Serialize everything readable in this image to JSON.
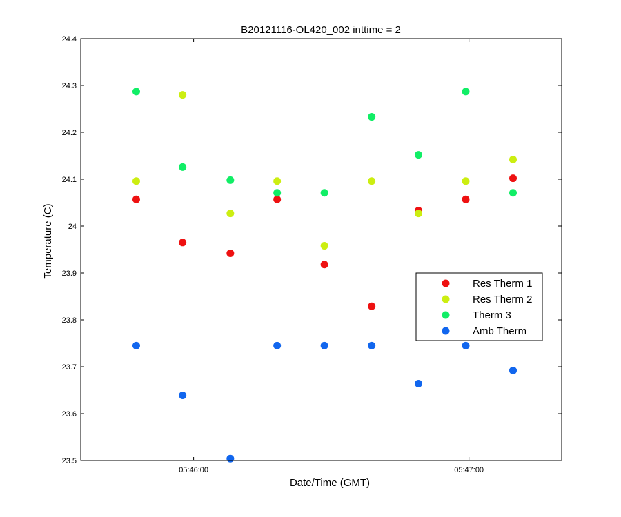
{
  "chart_data": {
    "type": "scatter",
    "title": "B20121116-OL420_002 inttime = 2",
    "xlabel": "Date/Time (GMT)",
    "ylabel": "Temperature (C)",
    "x_ticks": [
      "05:46:00",
      "05:47:00"
    ],
    "x_tick_values_sec": [
      0,
      60
    ],
    "xlim_sec": [
      -24.6,
      80.2
    ],
    "ylim": [
      23.5,
      24.4
    ],
    "y_ticks": [
      "23.5",
      "23.6",
      "23.7",
      "23.8",
      "23.9",
      "24",
      "24.1",
      "24.2",
      "24.3",
      "24.4"
    ],
    "grid": false,
    "legend_position": "lower right",
    "x_sec": [
      -12.5,
      -2.4,
      8,
      18.2,
      28.5,
      38.8,
      49,
      59.3,
      69.6
    ],
    "series": [
      {
        "name": "Res Therm 1",
        "color": "#ee1111",
        "values": [
          24.057,
          23.965,
          23.942,
          24.057,
          23.918,
          23.829,
          24.033,
          24.057,
          24.102
        ]
      },
      {
        "name": "Res Therm 2",
        "color": "#ccee11",
        "values": [
          24.096,
          24.28,
          24.027,
          24.096,
          23.958,
          24.096,
          24.027,
          24.096,
          24.142
        ]
      },
      {
        "name": "Therm 3",
        "color": "#11ee66",
        "values": [
          24.287,
          24.126,
          24.098,
          24.071,
          24.071,
          24.233,
          24.152,
          24.287,
          24.071
        ]
      },
      {
        "name": "Amb Therm",
        "color": "#1166ee",
        "values": [
          23.745,
          23.639,
          23.504,
          23.745,
          23.745,
          23.745,
          23.664,
          23.745,
          23.692
        ]
      }
    ]
  }
}
